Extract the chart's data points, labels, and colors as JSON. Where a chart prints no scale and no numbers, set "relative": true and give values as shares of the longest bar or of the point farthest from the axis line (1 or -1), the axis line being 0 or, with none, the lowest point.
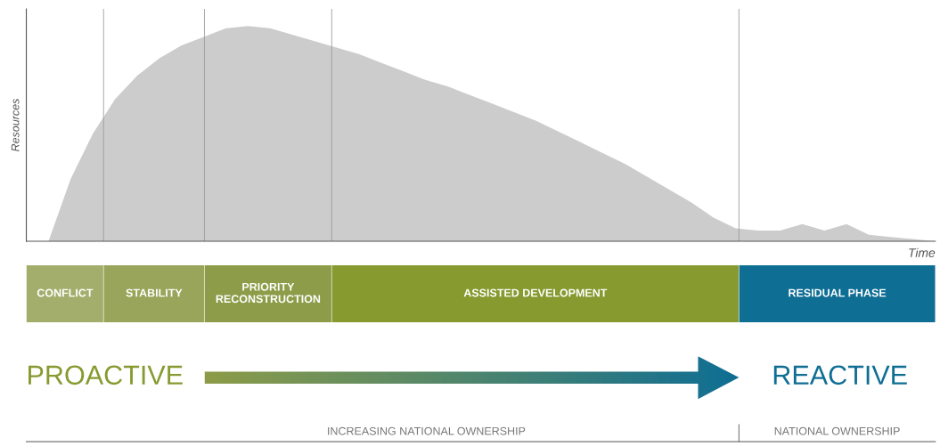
{
  "chart_data": [
    {
      "type": "area",
      "relative": true,
      "ylabel": "Resources",
      "xlabel": "Time",
      "categories": [
        null,
        null,
        null,
        null,
        null,
        null,
        null,
        null,
        null,
        null,
        null,
        null,
        null,
        null,
        null,
        null,
        null,
        null,
        null,
        null,
        null,
        null,
        null,
        null,
        null,
        null,
        null,
        null,
        null,
        null,
        null,
        null,
        null,
        null,
        null,
        null,
        null,
        null,
        null,
        null,
        null,
        null
      ],
      "series": [
        {
          "color": "#cccccc",
          "values": [
            0,
            0,
            0.29,
            0.5,
            0.66,
            0.77,
            0.85,
            0.91,
            0.95,
            0.99,
            1.0,
            0.99,
            0.96,
            0.93,
            0.9,
            0.87,
            0.83,
            0.79,
            0.75,
            0.72,
            0.68,
            0.64,
            0.6,
            0.56,
            0.51,
            0.46,
            0.41,
            0.36,
            0.3,
            0.24,
            0.18,
            0.11,
            0.06,
            0.05,
            0.05,
            0.08,
            0.05,
            0.08,
            0.03,
            0.02,
            0.01,
            0
          ]
        }
      ],
      "grid": false,
      "legend": false
    },
    {
      "type": "bar",
      "orientation": "horizontal",
      "stacked": true,
      "relative": true,
      "categories": [
        null
      ],
      "series": [
        {
          "name": "CONFLICT",
          "color": "#a4ae6c",
          "values": [
            0.085
          ]
        },
        {
          "name": "STABILITY",
          "color": "#98a55a",
          "values": [
            0.111
          ]
        },
        {
          "name": "PRIORITY\nRECONSTRUCTION",
          "color": "#8d9c48",
          "values": [
            0.14
          ]
        },
        {
          "name": "ASSISTED DEVELOPMENT",
          "color": "#869a30",
          "values": [
            0.448
          ]
        },
        {
          "name": "RESIDUAL PHASE",
          "color": "#0f6e94",
          "values": [
            0.216
          ]
        }
      ],
      "annotations": [
        "PROACTIVE",
        "REACTIVE",
        "INCREASING NATIONAL OWNERSHIP",
        "NATIONAL OWNERSHIP"
      ],
      "grid": false,
      "legend": false
    }
  ]
}
